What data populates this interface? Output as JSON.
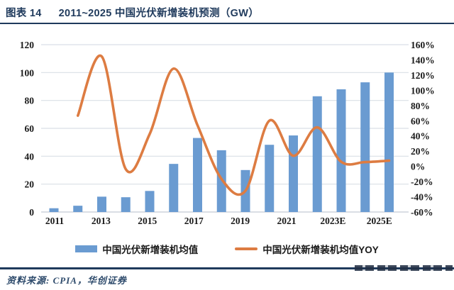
{
  "header": {
    "chart_label": "图表 14",
    "title": "2011~2025 中国光伏新增装机预测（GW）"
  },
  "chart_data": {
    "type": "combo-bar-line",
    "title": "2011~2025 中国光伏新增装机预测（GW）",
    "categories": [
      "2011",
      "2012",
      "2013",
      "2014",
      "2015",
      "2016",
      "2017",
      "2018",
      "2019",
      "2020",
      "2021",
      "2022",
      "2023E",
      "2024E",
      "2025E"
    ],
    "x_tick_labels": [
      "2011",
      "2013",
      "2015",
      "2017",
      "2019",
      "2021",
      "2023E",
      "2025E"
    ],
    "series": [
      {
        "name": "中国光伏新增装机均值",
        "type": "bar",
        "axis": "left",
        "unit": "GW",
        "values": [
          2.7,
          4.5,
          11,
          10.6,
          15.1,
          34.5,
          53.1,
          44.3,
          30.1,
          48.2,
          54.9,
          83,
          88,
          93,
          100
        ]
      },
      {
        "name": "中国光伏新增装机均值YOY",
        "type": "smooth-line",
        "axis": "right",
        "unit": "%",
        "values": [
          null,
          66.7,
          144.4,
          -3.6,
          42.5,
          128.5,
          53.9,
          -16.6,
          -32.1,
          60.1,
          13.9,
          51.2,
          6.0,
          5.7,
          7.5
        ]
      }
    ],
    "left_axis": {
      "min": 0,
      "max": 120,
      "step": 20,
      "ticks": [
        "0",
        "20",
        "40",
        "60",
        "80",
        "100",
        "120"
      ]
    },
    "right_axis": {
      "min": -60,
      "max": 160,
      "step": 20,
      "ticks": [
        "160%",
        "140%",
        "120%",
        "100%",
        "80%",
        "60%",
        "40%",
        "20%",
        "0%",
        "-20%",
        "-40%",
        "-60%"
      ]
    },
    "grid": "horizontal-on",
    "legend_position": "bottom"
  },
  "colors": {
    "navy": "#1F3A5C",
    "bar": "#6A9BD1",
    "line": "#DD7C42",
    "grid": "#D9DFE6",
    "baseline": "#C3CAD3",
    "axis_text": "#1a1a1a"
  },
  "footer": {
    "source": "资料来源: CPIA，华创证券"
  }
}
